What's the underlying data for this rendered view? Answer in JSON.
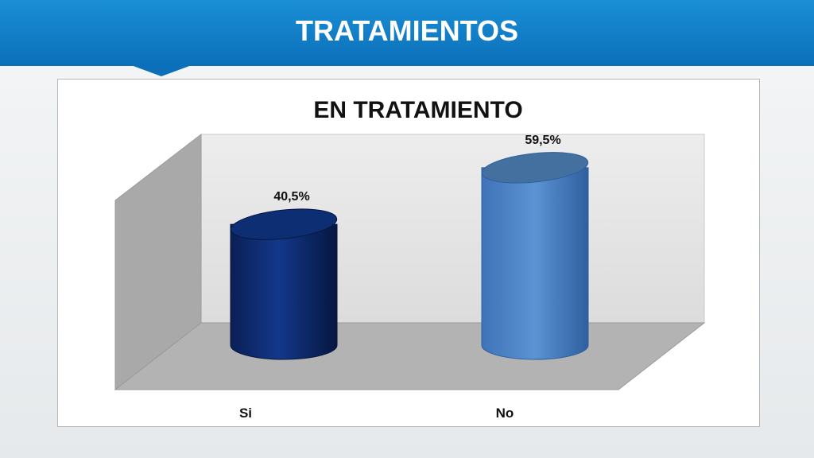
{
  "header": {
    "title": "TRATAMIENTOS"
  },
  "colors": {
    "banner": "#0b6fb9",
    "series_si": "#0c2a6e",
    "series_no": "#4f86c6"
  },
  "chart_data": {
    "type": "bar",
    "style": "3d-cylinder",
    "title": "EN TRATAMIENTO",
    "categories": [
      "Si",
      "No"
    ],
    "values": [
      40.5,
      59.5
    ],
    "data_labels": [
      "40,5%",
      "59,5%"
    ],
    "ylim": [
      0,
      60
    ],
    "grid": false,
    "legend": "none"
  }
}
